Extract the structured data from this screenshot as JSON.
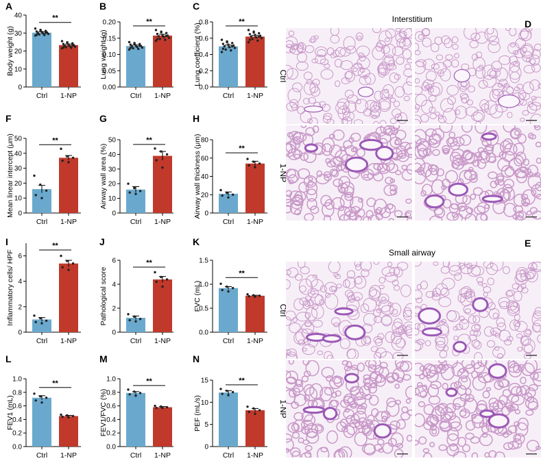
{
  "colors": {
    "ctrl": "#6aa9cd",
    "np": "#c0392b",
    "dot": "#222222",
    "tissue": "#c898c8",
    "tissue_line": "#9b59b6",
    "background_tissue": "#f7eff7"
  },
  "chart_data": [
    {
      "id": "A",
      "type": "bar",
      "categories": [
        "Ctrl",
        "1-NP"
      ],
      "values": [
        30.2,
        23.3
      ],
      "errors": [
        0.6,
        0.6
      ],
      "points": [
        [
          32.5,
          31.8,
          31.2,
          30.9,
          30.6,
          30.3,
          30.0,
          29.8,
          29.5,
          29.2,
          28.9,
          28.6,
          31.5,
          30.1,
          29.0
        ],
        [
          25.5,
          24.9,
          24.3,
          23.9,
          23.6,
          23.3,
          23.0,
          22.7,
          22.4,
          22.1,
          21.8,
          21.5,
          24.6,
          23.1,
          22.0
        ]
      ],
      "ylabel": "Body weight (g)",
      "ylim": [
        0,
        40
      ],
      "yticks": [
        0,
        10,
        20,
        30,
        40
      ],
      "significance": "**"
    },
    {
      "id": "B",
      "type": "bar",
      "categories": [
        "Ctrl",
        "1-NP"
      ],
      "values": [
        0.126,
        0.158
      ],
      "errors": [
        0.003,
        0.004
      ],
      "points": [
        [
          0.138,
          0.135,
          0.132,
          0.13,
          0.128,
          0.126,
          0.125,
          0.123,
          0.121,
          0.119,
          0.117,
          0.115,
          0.133,
          0.127,
          0.12
        ],
        [
          0.175,
          0.17,
          0.166,
          0.163,
          0.16,
          0.158,
          0.156,
          0.154,
          0.151,
          0.148,
          0.145,
          0.142,
          0.168,
          0.157,
          0.147
        ]
      ],
      "ylabel": "Lung weight (g)",
      "ylim": [
        0,
        0.2
      ],
      "yticks": [
        0.0,
        0.05,
        0.1,
        0.15,
        0.2
      ],
      "significance": "**"
    },
    {
      "id": "C",
      "type": "bar",
      "categories": [
        "Ctrl",
        "1-NP"
      ],
      "values": [
        0.5,
        0.62
      ],
      "errors": [
        0.015,
        0.015
      ],
      "points": [
        [
          0.58,
          0.56,
          0.54,
          0.53,
          0.52,
          0.51,
          0.5,
          0.49,
          0.48,
          0.46,
          0.45,
          0.43,
          0.55,
          0.5,
          0.47
        ],
        [
          0.7,
          0.68,
          0.66,
          0.65,
          0.64,
          0.63,
          0.62,
          0.61,
          0.6,
          0.59,
          0.57,
          0.55,
          0.67,
          0.62,
          0.58
        ]
      ],
      "ylabel": "Lung coefficient (%)",
      "ylim": [
        0,
        0.8
      ],
      "yticks": [
        0.0,
        0.2,
        0.4,
        0.6,
        0.8
      ],
      "significance": "**"
    },
    {
      "id": "F",
      "type": "bar",
      "categories": [
        "Ctrl",
        "1-NP"
      ],
      "values": [
        16,
        37
      ],
      "errors": [
        2.5,
        1.5
      ],
      "points": [
        [
          25,
          19,
          15,
          12,
          10
        ],
        [
          43,
          38,
          37,
          35,
          34
        ]
      ],
      "ylabel": "Mean linear intercept (μm)",
      "ylim": [
        0,
        50
      ],
      "yticks": [
        0,
        10,
        20,
        30,
        40,
        50
      ],
      "significance": "**"
    },
    {
      "id": "G",
      "type": "bar",
      "categories": [
        "Ctrl",
        "1-NP"
      ],
      "values": [
        16,
        39
      ],
      "errors": [
        2.0,
        3.0
      ],
      "points": [
        [
          20,
          17,
          15,
          14,
          13
        ],
        [
          44,
          42,
          40,
          36,
          31
        ]
      ],
      "ylabel": "Airway wall area (%)",
      "ylim": [
        0,
        50
      ],
      "yticks": [
        0,
        10,
        20,
        30,
        40,
        50
      ],
      "significance": "**"
    },
    {
      "id": "H",
      "type": "bar",
      "categories": [
        "Ctrl",
        "1-NP"
      ],
      "values": [
        21,
        54
      ],
      "errors": [
        2.0,
        2.5
      ],
      "points": [
        [
          25,
          22,
          20,
          19,
          17
        ],
        [
          59,
          56,
          54,
          52,
          50
        ]
      ],
      "ylabel": "Airway wall thickness (μm)",
      "ylim": [
        0,
        80
      ],
      "yticks": [
        0,
        20,
        40,
        60,
        80
      ],
      "significance": "**"
    },
    {
      "id": "I",
      "type": "bar",
      "categories": [
        "Ctrl",
        "1-NP"
      ],
      "values": [
        1.0,
        5.4
      ],
      "errors": [
        0.15,
        0.25
      ],
      "points": [
        [
          1.3,
          1.1,
          0.9,
          0.8,
          0.7
        ],
        [
          6.0,
          5.6,
          5.4,
          5.1,
          4.9
        ]
      ],
      "ylabel": "Inflammatory cells/ HPF",
      "ylim": [
        0,
        7
      ],
      "yticks": [
        0,
        2,
        4,
        6
      ],
      "significance": "**"
    },
    {
      "id": "J",
      "type": "bar",
      "categories": [
        "Ctrl",
        "1-NP"
      ],
      "values": [
        1.2,
        4.4
      ],
      "errors": [
        0.15,
        0.25
      ],
      "points": [
        [
          1.5,
          1.3,
          1.1,
          1.0,
          0.9
        ],
        [
          5.0,
          4.6,
          4.4,
          4.2,
          3.8
        ]
      ],
      "ylabel": "Pathological score",
      "ylim": [
        0,
        6
      ],
      "yticks": [
        0,
        2,
        4,
        6
      ],
      "significance": "**"
    },
    {
      "id": "K",
      "type": "bar",
      "categories": [
        "Ctrl",
        "1-NP"
      ],
      "values": [
        0.92,
        0.76
      ],
      "errors": [
        0.03,
        0.01
      ],
      "points": [
        [
          1.01,
          0.95,
          0.92,
          0.88,
          0.85
        ],
        [
          0.79,
          0.77,
          0.76,
          0.75,
          0.74
        ]
      ],
      "ylabel": "FVC (mL)",
      "ylim": [
        0,
        1.5
      ],
      "yticks": [
        0.0,
        0.5,
        1.0,
        1.5
      ],
      "significance": "**"
    },
    {
      "id": "L",
      "type": "bar",
      "categories": [
        "Ctrl",
        "1-NP"
      ],
      "values": [
        0.72,
        0.45
      ],
      "errors": [
        0.03,
        0.01
      ],
      "points": [
        [
          0.78,
          0.74,
          0.72,
          0.68,
          0.65
        ],
        [
          0.47,
          0.46,
          0.45,
          0.44,
          0.43
        ]
      ],
      "ylabel": "FEV1 (mL)",
      "ylim": [
        0,
        1.0
      ],
      "yticks": [
        0.0,
        0.2,
        0.4,
        0.6,
        0.8,
        1.0
      ],
      "significance": "**"
    },
    {
      "id": "M",
      "type": "bar",
      "categories": [
        "Ctrl",
        "1-NP"
      ],
      "values": [
        0.79,
        0.58
      ],
      "errors": [
        0.02,
        0.01
      ],
      "points": [
        [
          0.84,
          0.81,
          0.79,
          0.77,
          0.75
        ],
        [
          0.6,
          0.59,
          0.58,
          0.57,
          0.57
        ]
      ],
      "ylabel": "FEV1/FVC (%)",
      "ylim": [
        0,
        1.0
      ],
      "yticks": [
        0.0,
        0.2,
        0.4,
        0.6,
        0.8,
        1.0
      ],
      "significance": "**"
    },
    {
      "id": "N",
      "type": "bar",
      "categories": [
        "Ctrl",
        "1-NP"
      ],
      "values": [
        12.2,
        8.2
      ],
      "errors": [
        0.4,
        0.4
      ],
      "points": [
        [
          13.0,
          12.6,
          12.3,
          11.9,
          11.6
        ],
        [
          9.0,
          8.6,
          8.2,
          7.8,
          7.4
        ]
      ],
      "ylabel": "PEF (mL/s)",
      "ylim": [
        0,
        15
      ],
      "yticks": [
        0,
        5,
        10,
        15
      ],
      "significance": "**"
    }
  ],
  "histology": [
    {
      "id": "D",
      "title": "Interstitium",
      "rows": [
        "Ctrl",
        "1-NP"
      ]
    },
    {
      "id": "E",
      "title": "Small airway",
      "rows": [
        "Ctrl",
        "1-NP"
      ]
    }
  ]
}
